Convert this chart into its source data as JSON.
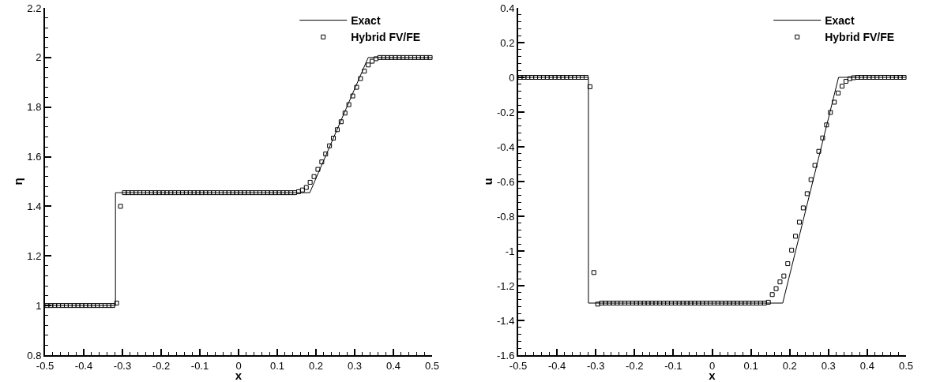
{
  "chart_data": [
    {
      "type": "line",
      "xlabel": "x",
      "ylabel": "η",
      "xlim": [
        -0.5,
        0.5
      ],
      "ylim": [
        0.8,
        2.2
      ],
      "xticks": [
        -0.5,
        -0.4,
        -0.3,
        -0.2,
        -0.1,
        0,
        0.1,
        0.2,
        0.3,
        0.4,
        0.5
      ],
      "yticks": [
        0.8,
        1,
        1.2,
        1.4,
        1.6,
        1.8,
        2,
        2.2
      ],
      "grid": false,
      "legend": "top right",
      "series": [
        {
          "name": "Exact",
          "color": "#000000",
          "line_style": "solid",
          "marker": "none",
          "x": [
            -0.5,
            -0.318,
            -0.318,
            0.184,
            0.335,
            0.5
          ],
          "values": [
            1,
            1,
            1.455,
            1.455,
            2,
            2
          ]
        },
        {
          "name": "Hybrid FV/FE",
          "type": "scatter",
          "color": "#000000",
          "marker": "square",
          "x": [
            -0.495,
            -0.485,
            -0.475,
            -0.465,
            -0.455,
            -0.445,
            -0.435,
            -0.425,
            -0.415,
            -0.405,
            -0.395,
            -0.385,
            -0.375,
            -0.365,
            -0.355,
            -0.345,
            -0.335,
            -0.325,
            -0.315,
            -0.305,
            -0.295,
            -0.285,
            -0.275,
            -0.265,
            -0.255,
            -0.245,
            -0.235,
            -0.225,
            -0.215,
            -0.205,
            -0.195,
            -0.185,
            -0.175,
            -0.165,
            -0.155,
            -0.145,
            -0.135,
            -0.125,
            -0.115,
            -0.105,
            -0.095,
            -0.085,
            -0.075,
            -0.065,
            -0.055,
            -0.045,
            -0.035,
            -0.025,
            -0.015,
            -0.005,
            0.005,
            0.015,
            0.025,
            0.035,
            0.045,
            0.055,
            0.065,
            0.075,
            0.085,
            0.095,
            0.105,
            0.115,
            0.125,
            0.135,
            0.145,
            0.155,
            0.165,
            0.175,
            0.185,
            0.195,
            0.205,
            0.215,
            0.225,
            0.235,
            0.245,
            0.255,
            0.265,
            0.275,
            0.285,
            0.295,
            0.305,
            0.315,
            0.325,
            0.335,
            0.345,
            0.355,
            0.365,
            0.375,
            0.385,
            0.395,
            0.405,
            0.415,
            0.425,
            0.435,
            0.445,
            0.455,
            0.465,
            0.475,
            0.485,
            0.495
          ],
          "values": [
            1,
            1,
            1,
            1,
            1,
            1,
            1,
            1,
            1,
            1,
            1,
            1,
            1,
            1,
            1,
            1,
            1,
            1,
            1.01,
            1.4,
            1.455,
            1.455,
            1.455,
            1.455,
            1.455,
            1.455,
            1.455,
            1.455,
            1.455,
            1.455,
            1.455,
            1.455,
            1.455,
            1.455,
            1.455,
            1.455,
            1.455,
            1.455,
            1.455,
            1.455,
            1.455,
            1.455,
            1.455,
            1.455,
            1.455,
            1.455,
            1.455,
            1.455,
            1.455,
            1.455,
            1.455,
            1.455,
            1.455,
            1.455,
            1.455,
            1.455,
            1.455,
            1.455,
            1.455,
            1.455,
            1.455,
            1.455,
            1.455,
            1.455,
            1.455,
            1.459,
            1.466,
            1.476,
            1.497,
            1.52,
            1.549,
            1.579,
            1.611,
            1.644,
            1.675,
            1.709,
            1.741,
            1.776,
            1.81,
            1.845,
            1.88,
            1.915,
            1.945,
            1.97,
            1.985,
            1.995,
            2,
            2,
            2,
            2,
            2,
            2,
            2,
            2,
            2,
            2,
            2,
            2,
            2,
            2
          ]
        }
      ]
    },
    {
      "type": "line",
      "xlabel": "x",
      "ylabel": "u",
      "xlim": [
        -0.5,
        0.5
      ],
      "ylim": [
        -1.6,
        0.4
      ],
      "xticks": [
        -0.5,
        -0.4,
        -0.3,
        -0.2,
        -0.1,
        0,
        0.1,
        0.2,
        0.3,
        0.4,
        0.5
      ],
      "yticks": [
        -1.6,
        -1.4,
        -1.2,
        -1,
        -0.8,
        -0.6,
        -0.4,
        -0.2,
        0,
        0.2,
        0.4
      ],
      "grid": false,
      "legend": "top right",
      "series": [
        {
          "name": "Exact",
          "color": "#000000",
          "line_style": "solid",
          "marker": "none",
          "x": [
            -0.5,
            -0.319,
            -0.319,
            0.182,
            0.326,
            0.5
          ],
          "values": [
            0,
            0,
            -1.3,
            -1.3,
            0,
            0
          ]
        },
        {
          "name": "Hybrid FV/FE",
          "type": "scatter",
          "color": "#000000",
          "marker": "square",
          "x": [
            -0.495,
            -0.485,
            -0.475,
            -0.465,
            -0.455,
            -0.445,
            -0.435,
            -0.425,
            -0.415,
            -0.405,
            -0.395,
            -0.385,
            -0.375,
            -0.365,
            -0.355,
            -0.345,
            -0.335,
            -0.325,
            -0.315,
            -0.305,
            -0.295,
            -0.285,
            -0.275,
            -0.265,
            -0.255,
            -0.245,
            -0.235,
            -0.225,
            -0.215,
            -0.205,
            -0.195,
            -0.185,
            -0.175,
            -0.165,
            -0.155,
            -0.145,
            -0.135,
            -0.125,
            -0.115,
            -0.105,
            -0.095,
            -0.085,
            -0.075,
            -0.065,
            -0.055,
            -0.045,
            -0.035,
            -0.025,
            -0.015,
            -0.005,
            0.005,
            0.015,
            0.025,
            0.035,
            0.045,
            0.055,
            0.065,
            0.075,
            0.085,
            0.095,
            0.105,
            0.115,
            0.125,
            0.135,
            0.145,
            0.155,
            0.165,
            0.175,
            0.185,
            0.195,
            0.205,
            0.215,
            0.225,
            0.235,
            0.245,
            0.255,
            0.265,
            0.275,
            0.285,
            0.295,
            0.305,
            0.315,
            0.325,
            0.335,
            0.345,
            0.355,
            0.365,
            0.375,
            0.385,
            0.395,
            0.405,
            0.415,
            0.425,
            0.435,
            0.445,
            0.455,
            0.465,
            0.475,
            0.485,
            0.495
          ],
          "values": [
            0,
            0,
            0,
            0,
            0,
            0,
            0,
            0,
            0,
            0,
            0,
            0,
            0,
            0,
            0,
            0,
            0,
            0,
            -0.054,
            -1.124,
            -1.306,
            -1.3,
            -1.3,
            -1.3,
            -1.3,
            -1.3,
            -1.3,
            -1.3,
            -1.3,
            -1.3,
            -1.3,
            -1.3,
            -1.3,
            -1.3,
            -1.3,
            -1.3,
            -1.3,
            -1.3,
            -1.3,
            -1.3,
            -1.3,
            -1.3,
            -1.3,
            -1.3,
            -1.3,
            -1.3,
            -1.3,
            -1.3,
            -1.3,
            -1.3,
            -1.3,
            -1.3,
            -1.3,
            -1.3,
            -1.3,
            -1.3,
            -1.3,
            -1.3,
            -1.3,
            -1.3,
            -1.3,
            -1.3,
            -1.3,
            -1.3,
            -1.295,
            -1.251,
            -1.217,
            -1.178,
            -1.144,
            -1.073,
            -0.995,
            -0.915,
            -0.834,
            -0.752,
            -0.67,
            -0.589,
            -0.507,
            -0.426,
            -0.349,
            -0.274,
            -0.202,
            -0.143,
            -0.09,
            -0.051,
            -0.023,
            -0.008,
            -0.002,
            0,
            0,
            0,
            0,
            0,
            0,
            0,
            0,
            0,
            0,
            0,
            0,
            0
          ]
        }
      ]
    }
  ]
}
